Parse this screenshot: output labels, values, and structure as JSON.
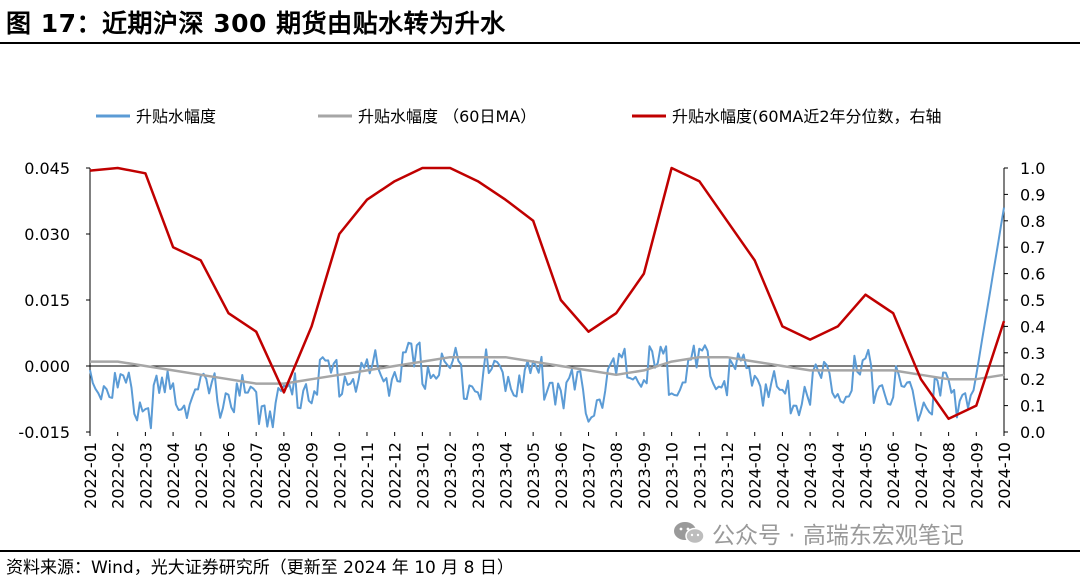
{
  "title": "图 17：近期沪深 300 期货由贴水转为升水",
  "source": "资料来源：Wind，光大证券研究所（更新至 2024 年 10 月 8 日）",
  "watermark": "公众号 · 高瑞东宏观笔记",
  "chart_data": {
    "type": "line",
    "x_ticks": [
      "2022-01",
      "2022-02",
      "2022-03",
      "2022-04",
      "2022-05",
      "2022-06",
      "2022-07",
      "2022-08",
      "2022-09",
      "2022-10",
      "2022-11",
      "2022-12",
      "2023-01",
      "2023-02",
      "2023-03",
      "2023-04",
      "2023-05",
      "2023-06",
      "2023-07",
      "2023-08",
      "2023-09",
      "2023-10",
      "2023-11",
      "2023-12",
      "2024-01",
      "2024-02",
      "2024-03",
      "2024-04",
      "2024-05",
      "2024-06",
      "2024-07",
      "2024-08",
      "2024-09",
      "2024-10"
    ],
    "y_left": {
      "ticks": [
        "-0.015",
        "0.000",
        "0.015",
        "0.030",
        "0.045"
      ],
      "ylim": [
        -0.015,
        0.045
      ]
    },
    "y_right": {
      "ticks": [
        "0.0",
        "0.1",
        "0.2",
        "0.3",
        "0.4",
        "0.5",
        "0.6",
        "0.7",
        "0.8",
        "0.9",
        "1.0"
      ],
      "ylim": [
        0.0,
        1.0
      ]
    },
    "series": [
      {
        "name": "升贴水幅度",
        "axis": "left",
        "color": "#5b9bd5",
        "x": [
          "2022-01",
          "2022-02",
          "2022-03",
          "2022-04",
          "2022-05",
          "2022-06",
          "2022-07",
          "2022-08",
          "2022-09",
          "2022-10",
          "2022-11",
          "2022-12",
          "2023-01",
          "2023-02",
          "2023-03",
          "2023-04",
          "2023-05",
          "2023-06",
          "2023-07",
          "2023-08",
          "2023-09",
          "2023-10",
          "2023-11",
          "2023-12",
          "2024-01",
          "2024-02",
          "2024-03",
          "2024-04",
          "2024-05",
          "2024-06",
          "2024-07",
          "2024-08",
          "2024-09",
          "2024-10"
        ],
        "values": [
          0.001,
          -0.002,
          -0.006,
          -0.003,
          -0.004,
          -0.003,
          -0.006,
          -0.005,
          0.0,
          0.001,
          0.001,
          0.002,
          0.003,
          0.002,
          0.001,
          0.001,
          0.001,
          -0.001,
          -0.005,
          0.001,
          0.002,
          0.002,
          0.002,
          0.001,
          0.001,
          -0.004,
          -0.001,
          0.0,
          0.001,
          -0.002,
          -0.005,
          -0.004,
          -0.002,
          0.036
        ]
      },
      {
        "name": "升贴水幅度 （60日MA）",
        "axis": "left",
        "color": "#a6a6a6",
        "x": [
          "2022-01",
          "2022-02",
          "2022-03",
          "2022-04",
          "2022-05",
          "2022-06",
          "2022-07",
          "2022-08",
          "2022-09",
          "2022-10",
          "2022-11",
          "2022-12",
          "2023-01",
          "2023-02",
          "2023-03",
          "2023-04",
          "2023-05",
          "2023-06",
          "2023-07",
          "2023-08",
          "2023-09",
          "2023-10",
          "2023-11",
          "2023-12",
          "2024-01",
          "2024-02",
          "2024-03",
          "2024-04",
          "2024-05",
          "2024-06",
          "2024-07",
          "2024-08",
          "2024-09",
          "2024-10"
        ],
        "values": [
          0.001,
          0.001,
          0.0,
          -0.001,
          -0.002,
          -0.003,
          -0.004,
          -0.004,
          -0.003,
          -0.002,
          -0.001,
          0.0,
          0.001,
          0.002,
          0.002,
          0.002,
          0.001,
          0.0,
          -0.001,
          -0.002,
          -0.001,
          0.001,
          0.002,
          0.002,
          0.001,
          0.0,
          -0.001,
          -0.001,
          -0.001,
          -0.001,
          -0.002,
          -0.003,
          -0.003,
          -0.002
        ]
      },
      {
        "name": "升贴水幅度(60MA近2年分位数，右轴",
        "axis": "right",
        "color": "#c00000",
        "x": [
          "2022-01",
          "2022-02",
          "2022-03",
          "2022-04",
          "2022-05",
          "2022-06",
          "2022-07",
          "2022-08",
          "2022-09",
          "2022-10",
          "2022-11",
          "2022-12",
          "2023-01",
          "2023-02",
          "2023-03",
          "2023-04",
          "2023-05",
          "2023-06",
          "2023-07",
          "2023-08",
          "2023-09",
          "2023-10",
          "2023-11",
          "2023-12",
          "2024-01",
          "2024-02",
          "2024-03",
          "2024-04",
          "2024-05",
          "2024-06",
          "2024-07",
          "2024-08",
          "2024-09",
          "2024-10"
        ],
        "values": [
          0.99,
          1.0,
          0.98,
          0.7,
          0.65,
          0.45,
          0.38,
          0.15,
          0.4,
          0.75,
          0.88,
          0.95,
          1.0,
          1.0,
          0.95,
          0.88,
          0.8,
          0.5,
          0.38,
          0.45,
          0.6,
          1.0,
          0.95,
          0.8,
          0.65,
          0.4,
          0.35,
          0.4,
          0.52,
          0.45,
          0.2,
          0.05,
          0.1,
          0.42
        ]
      }
    ],
    "legend_position": "top",
    "grid": false
  }
}
